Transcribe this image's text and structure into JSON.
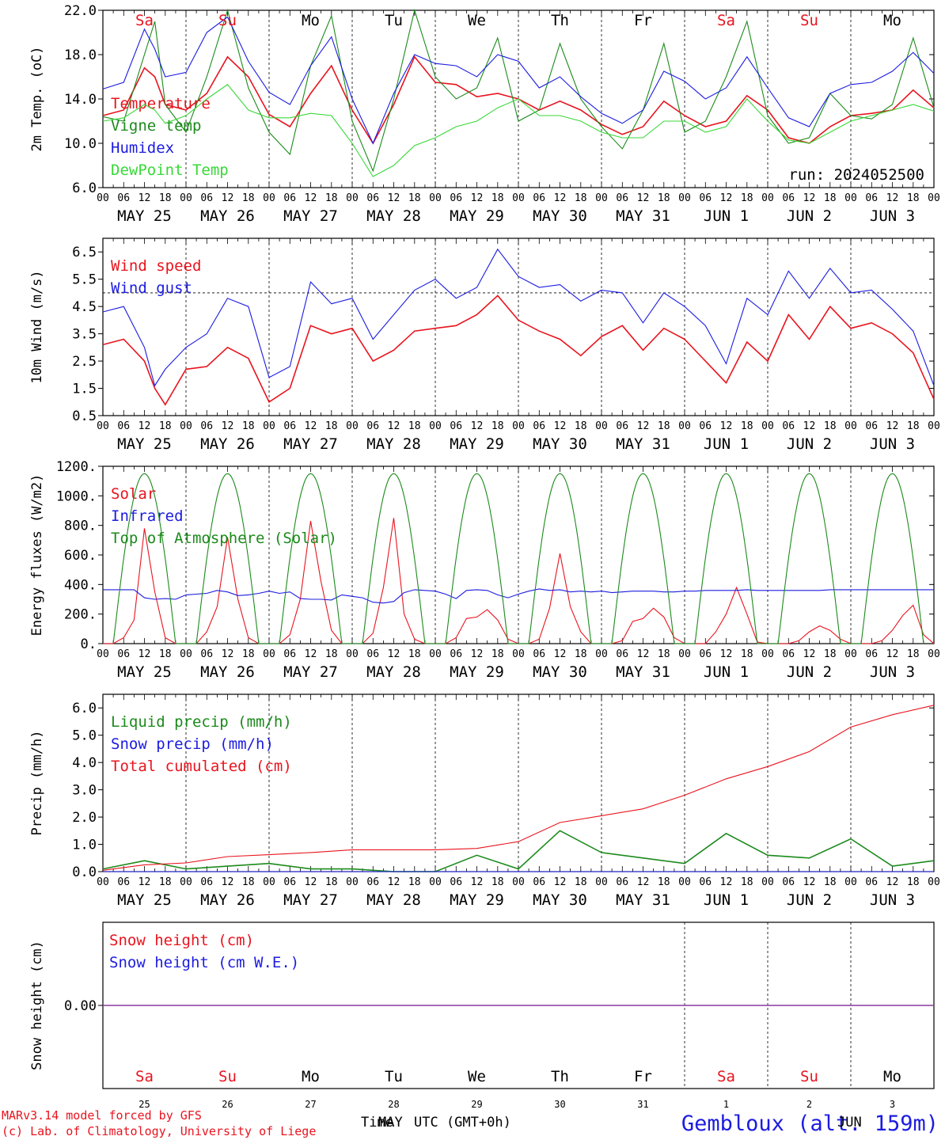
{
  "footer": {
    "model_line": "MARv3.14 model forced by GFS",
    "credit_line": "(c) Lab. of Climatology, University of Liege",
    "xlabel_time": "Time",
    "xlabel_utc": "UTC (GMT+0h)",
    "xlabel_month1": "MAY",
    "xlabel_month2": "JUN",
    "station": "Gembloux (alt. 159m)"
  },
  "colors": {
    "red": "#e8141e",
    "darkgreen": "#1c8a1c",
    "blue": "#1c1ce0",
    "lightgreen": "#38d838",
    "purple": "#8a3aa0",
    "weekend": "#e8141e",
    "weekday": "#000000"
  },
  "weekdays": [
    {
      "label": "Sa",
      "weekend": true
    },
    {
      "label": "Su",
      "weekend": true
    },
    {
      "label": "Mo",
      "weekend": false
    },
    {
      "label": "Tu",
      "weekend": false
    },
    {
      "label": "We",
      "weekend": false
    },
    {
      "label": "Th",
      "weekend": false
    },
    {
      "label": "Fr",
      "weekend": false
    },
    {
      "label": "Sa",
      "weekend": true
    },
    {
      "label": "Su",
      "weekend": true
    },
    {
      "label": "Mo",
      "weekend": false
    }
  ],
  "date_labels": [
    "MAY 25",
    "MAY 26",
    "MAY 27",
    "MAY 28",
    "MAY 29",
    "MAY 30",
    "MAY 31",
    "JUN  1",
    "JUN  2",
    "JUN  3"
  ],
  "day_numbers": [
    "25",
    "26",
    "27",
    "28",
    "29",
    "30",
    "31",
    "1",
    "2",
    "3"
  ],
  "hour_labels": [
    "00",
    "06",
    "12",
    "18"
  ],
  "chart_data": [
    {
      "type": "line",
      "id": "temp",
      "ylabel": "2m Temp. (oC)",
      "ylim": [
        6,
        22
      ],
      "ytick_labels": [
        "6.0",
        "10.0",
        "14.0",
        "18.0",
        "22.0"
      ],
      "annotation": "run: 2024052500",
      "x_hours": [
        0,
        6,
        12,
        15,
        18,
        24,
        30,
        36,
        42,
        48,
        54,
        60,
        66,
        72,
        78,
        84,
        90,
        96,
        102,
        108,
        114,
        120,
        126,
        132,
        138,
        144,
        150,
        156,
        162,
        168,
        174,
        180,
        186,
        192,
        198,
        204,
        210,
        216,
        222,
        228,
        234,
        240
      ],
      "series": [
        {
          "name": "Temperature",
          "color": "red",
          "values": [
            12.5,
            13.0,
            16.8,
            16.0,
            13.5,
            13.0,
            14.5,
            17.8,
            16.0,
            12.6,
            11.5,
            14.5,
            17.0,
            13.0,
            10.0,
            13.5,
            17.8,
            15.5,
            15.3,
            14.2,
            14.5,
            14.0,
            13.0,
            13.8,
            13.0,
            11.7,
            10.8,
            11.5,
            13.8,
            12.5,
            11.5,
            12.0,
            14.3,
            13.0,
            10.5,
            10.0,
            11.5,
            12.5,
            12.7,
            13.0,
            14.8,
            13.2
          ]
        },
        {
          "name": "Vigne temp",
          "color": "darkgreen",
          "values": [
            12.4,
            12.0,
            18.0,
            21.0,
            13.5,
            11.0,
            16.0,
            22.0,
            15.0,
            11.0,
            9.0,
            17.0,
            21.5,
            12.0,
            7.5,
            14.0,
            22.0,
            16.0,
            14.0,
            15.0,
            19.5,
            12.0,
            13.0,
            19.0,
            14.0,
            11.5,
            9.5,
            13.0,
            19.0,
            11.0,
            12.0,
            16.0,
            21.0,
            12.5,
            10.0,
            10.5,
            14.5,
            12.5,
            12.2,
            13.5,
            19.5,
            13.2
          ]
        },
        {
          "name": "Humidex",
          "color": "blue",
          "values": [
            14.9,
            15.5,
            20.3,
            18.5,
            16.0,
            16.4,
            20.0,
            21.4,
            17.4,
            14.6,
            13.5,
            17.0,
            19.6,
            14.0,
            10.0,
            14.5,
            18.0,
            17.2,
            17.0,
            16.0,
            18.0,
            17.4,
            15.0,
            16.0,
            14.2,
            12.7,
            11.8,
            13.0,
            16.5,
            15.6,
            14.0,
            15.0,
            17.8,
            15.0,
            12.3,
            11.5,
            14.5,
            15.3,
            15.5,
            16.5,
            18.2,
            16.3
          ]
        },
        {
          "name": "DewPoint Temp",
          "color": "lightgreen",
          "values": [
            12.0,
            12.3,
            13.5,
            13.0,
            11.8,
            12.5,
            14.0,
            15.3,
            13.0,
            12.3,
            12.3,
            12.7,
            12.5,
            10.0,
            7.0,
            8.0,
            9.8,
            10.5,
            11.5,
            12.0,
            13.2,
            14.0,
            12.5,
            12.5,
            12.0,
            11.0,
            10.5,
            10.5,
            12.0,
            12.0,
            11.0,
            11.5,
            14.0,
            12.0,
            10.3,
            10.0,
            11.0,
            12.0,
            12.5,
            13.0,
            13.5,
            12.9
          ]
        }
      ]
    },
    {
      "type": "line",
      "id": "wind",
      "ylabel": "10m Wind (m/s)",
      "ylim": [
        0.5,
        7.0
      ],
      "ytick_labels": [
        "0.5",
        "1.5",
        "2.5",
        "3.5",
        "4.5",
        "5.5",
        "6.5"
      ],
      "reference_line": 5,
      "x_hours": [
        0,
        6,
        12,
        15,
        18,
        24,
        30,
        36,
        42,
        48,
        54,
        60,
        66,
        72,
        78,
        84,
        90,
        96,
        102,
        108,
        114,
        120,
        126,
        132,
        138,
        144,
        150,
        156,
        162,
        168,
        174,
        180,
        186,
        192,
        198,
        204,
        210,
        216,
        222,
        228,
        234,
        240
      ],
      "series": [
        {
          "name": "Wind speed",
          "color": "red",
          "values": [
            3.1,
            3.3,
            2.5,
            1.5,
            0.9,
            2.2,
            2.3,
            3.0,
            2.6,
            1.0,
            1.5,
            3.8,
            3.5,
            3.7,
            2.5,
            2.9,
            3.6,
            3.7,
            3.8,
            4.2,
            4.9,
            4.0,
            3.6,
            3.3,
            2.7,
            3.4,
            3.8,
            2.9,
            3.7,
            3.3,
            2.5,
            1.7,
            3.2,
            2.5,
            4.2,
            3.3,
            4.5,
            3.7,
            3.9,
            3.5,
            2.8,
            1.1
          ]
        },
        {
          "name": "Wind gust",
          "color": "blue",
          "values": [
            4.3,
            4.5,
            3.0,
            1.6,
            2.2,
            3.0,
            3.5,
            4.8,
            4.5,
            1.9,
            2.3,
            5.4,
            4.6,
            4.8,
            3.3,
            4.2,
            5.1,
            5.5,
            4.8,
            5.2,
            6.6,
            5.6,
            5.2,
            5.3,
            4.7,
            5.1,
            5.0,
            3.9,
            5.0,
            4.5,
            3.8,
            2.4,
            4.8,
            4.2,
            5.8,
            4.8,
            5.9,
            5.0,
            5.1,
            4.4,
            3.6,
            1.6
          ]
        }
      ]
    },
    {
      "type": "line",
      "id": "energy",
      "ylabel": "Energy fluxes (W/m2)",
      "ylim": [
        0,
        1200
      ],
      "ytick_labels": [
        "0.",
        "200.",
        "400.",
        "600.",
        "800.",
        "1000.",
        "1200."
      ],
      "x_hours": [
        0,
        3,
        6,
        9,
        12,
        15,
        18,
        21,
        24,
        27,
        30,
        33,
        36,
        39,
        42,
        45,
        48,
        51,
        54,
        57,
        60,
        63,
        66,
        69,
        72,
        75,
        78,
        81,
        84,
        87,
        90,
        93,
        96,
        99,
        102,
        105,
        108,
        111,
        114,
        117,
        120,
        123,
        126,
        129,
        132,
        135,
        138,
        141,
        144,
        147,
        150,
        153,
        156,
        159,
        162,
        165,
        168,
        171,
        174,
        177,
        180,
        183,
        186,
        189,
        192,
        195,
        198,
        201,
        204,
        207,
        210,
        213,
        216,
        219,
        222,
        225,
        228,
        231,
        234,
        237,
        240
      ],
      "series": [
        {
          "name": "Solar",
          "color": "red",
          "values": [
            0,
            0,
            40,
            160,
            780,
            350,
            40,
            0,
            0,
            0,
            80,
            250,
            720,
            300,
            40,
            0,
            0,
            0,
            60,
            300,
            830,
            420,
            90,
            0,
            0,
            0,
            70,
            380,
            850,
            200,
            30,
            0,
            0,
            0,
            40,
            170,
            180,
            230,
            160,
            30,
            0,
            0,
            30,
            240,
            610,
            250,
            80,
            0,
            0,
            0,
            20,
            150,
            170,
            240,
            180,
            40,
            0,
            0,
            0,
            80,
            200,
            380,
            200,
            10,
            0,
            0,
            0,
            20,
            80,
            120,
            90,
            30,
            0,
            0,
            0,
            20,
            90,
            190,
            260,
            60,
            0
          ]
        },
        {
          "name": "Infrared",
          "color": "blue",
          "values": [
            365,
            365,
            365,
            365,
            310,
            300,
            305,
            300,
            330,
            335,
            340,
            360,
            350,
            325,
            330,
            340,
            355,
            340,
            350,
            305,
            300,
            300,
            295,
            330,
            320,
            310,
            280,
            275,
            285,
            345,
            365,
            360,
            355,
            335,
            305,
            360,
            365,
            360,
            330,
            310,
            335,
            355,
            370,
            360,
            365,
            350,
            355,
            350,
            355,
            345,
            350,
            355,
            355,
            355,
            350,
            350,
            355,
            355,
            360,
            360,
            360,
            360,
            365,
            360,
            360,
            360,
            360,
            360,
            360,
            360,
            365,
            365,
            365,
            365,
            365,
            365,
            365,
            365,
            365,
            365,
            365
          ]
        },
        {
          "name": "Top of Atmosphere (Solar)",
          "color": "darkgreen",
          "values": [
            0,
            250,
            900,
            1150,
            1050,
            600,
            0
          ]
        }
      ]
    },
    {
      "type": "line",
      "id": "precip",
      "ylabel": "Precip (mm/h)",
      "ylim": [
        0,
        6.5
      ],
      "ytick_labels": [
        "0.0",
        "1.0",
        "2.0",
        "3.0",
        "4.0",
        "5.0",
        "6.0"
      ],
      "x_hours": [
        0,
        12,
        24,
        36,
        48,
        60,
        72,
        84,
        96,
        108,
        120,
        132,
        144,
        156,
        168,
        180,
        192,
        204,
        216,
        228,
        240
      ],
      "series": [
        {
          "name": "Liquid precip (mm/h)",
          "color": "darkgreen",
          "values": [
            0.1,
            0.4,
            0.1,
            0.2,
            0.3,
            0.1,
            0.1,
            0,
            0,
            0.6,
            0.1,
            1.5,
            0.7,
            0.5,
            0.3,
            1.4,
            0.6,
            0.5,
            1.2,
            0.2,
            0.4
          ]
        },
        {
          "name": "Snow precip (mm/h)",
          "color": "blue",
          "values": [
            0,
            0,
            0,
            0,
            0,
            0,
            0,
            0,
            0,
            0,
            0,
            0,
            0,
            0,
            0,
            0,
            0,
            0,
            0,
            0,
            0
          ]
        },
        {
          "name": "Total cumulated (cm)",
          "color": "red",
          "values": [
            0.05,
            0.25,
            0.32,
            0.55,
            0.62,
            0.7,
            0.8,
            0.8,
            0.8,
            0.85,
            1.1,
            1.8,
            2.05,
            2.3,
            2.8,
            3.4,
            3.85,
            4.4,
            5.3,
            5.75,
            6.1
          ]
        }
      ]
    },
    {
      "type": "line",
      "id": "snow",
      "ylabel": "Snow height (cm)",
      "ylim": [
        -1,
        1
      ],
      "ytick_labels": [
        "0.00"
      ],
      "x_hours": [
        0,
        240
      ],
      "series": [
        {
          "name": "Snow height (cm)",
          "color": "red",
          "values": [
            0,
            0
          ]
        },
        {
          "name": "Snow height (cm W.E.)",
          "color": "blue",
          "values": [
            0,
            0
          ]
        }
      ]
    }
  ]
}
